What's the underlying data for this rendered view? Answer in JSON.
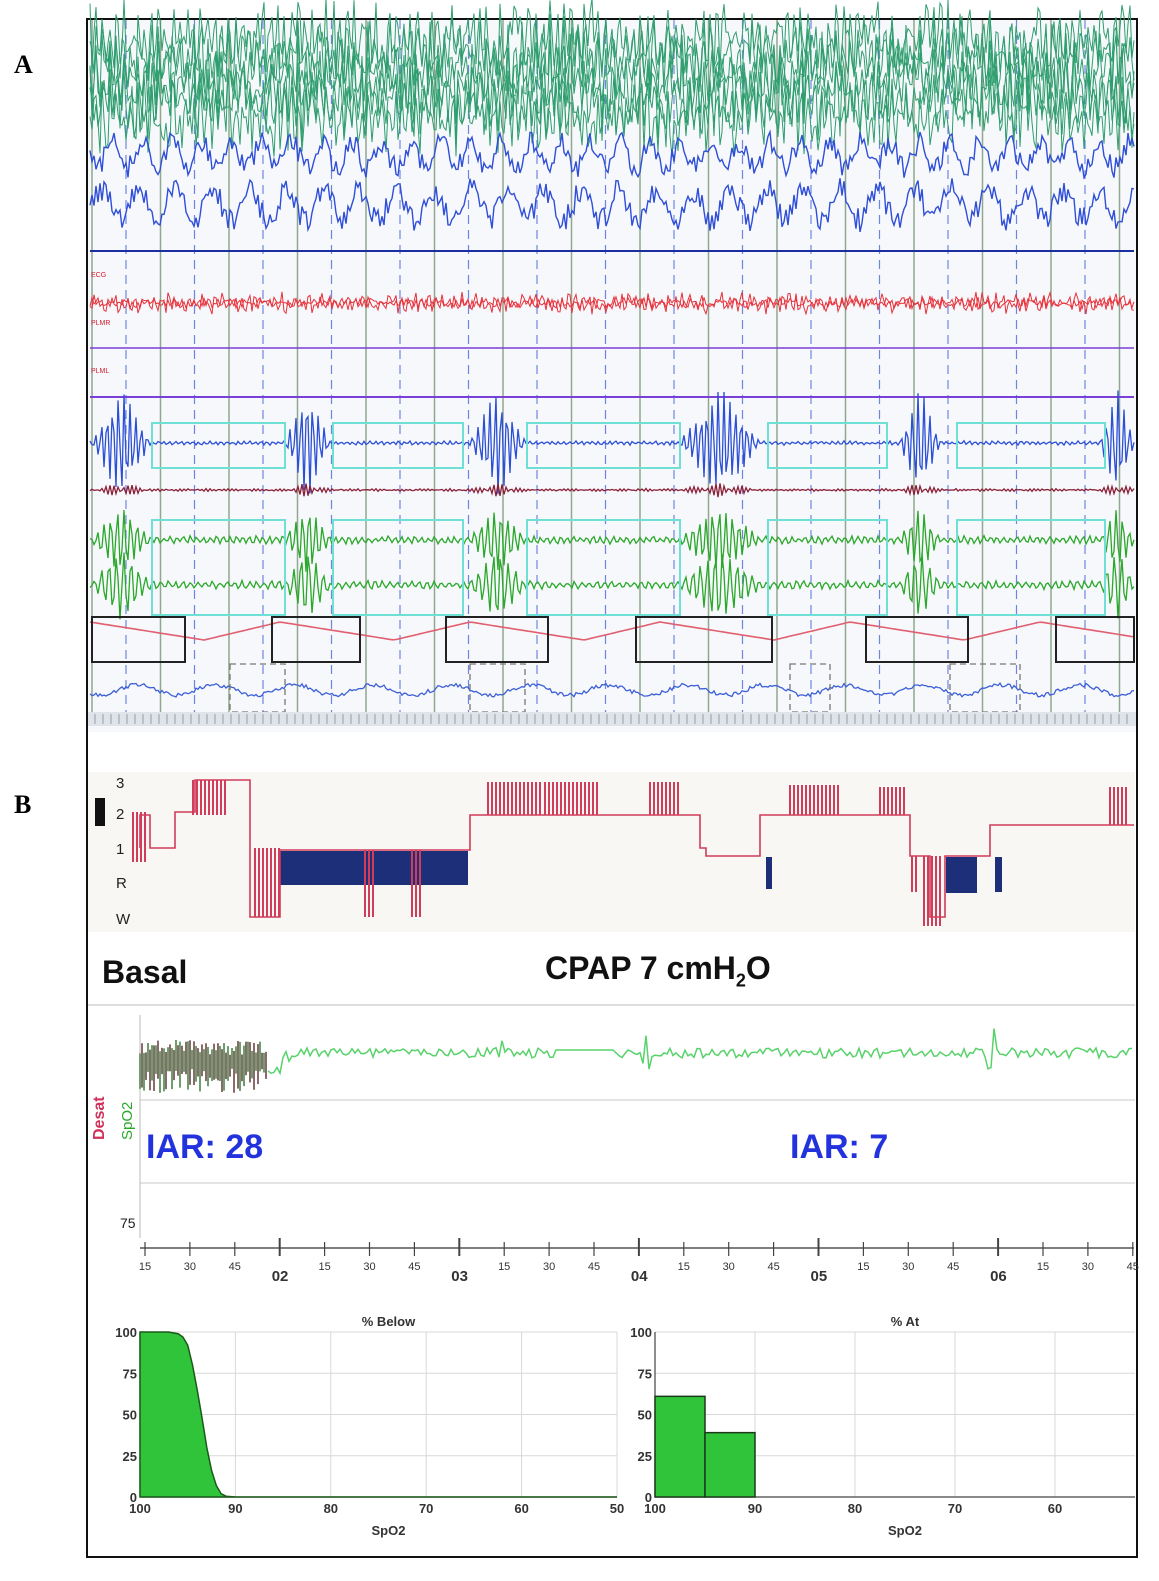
{
  "panels": {
    "a": "A",
    "b": "B"
  },
  "psg": {
    "channel_labels": [
      "ECG",
      "PLMR",
      "PLML"
    ],
    "colors": {
      "eeg": "#2e9e6e",
      "eog": "#2f4fd8",
      "ecg": "#e8313a",
      "leg": "#7a3fd6",
      "flow": "#2b4fd6",
      "effort": "#2aa82a",
      "spo2": "#e06070",
      "box_cyan": "#6ee0d6"
    }
  },
  "hypnogram": {
    "stage_labels": [
      "3",
      "2",
      "1",
      "R",
      "W"
    ],
    "colors": {
      "line": "#d03c5a",
      "rem": "#1e2f7a"
    }
  },
  "annotations": {
    "basal": "Basal",
    "cpap_pre": "CPAP  7 cmH",
    "cpap_sub": "2",
    "cpap_post": "O",
    "iar_left": "IAR: 28",
    "iar_right": "IAR: 7"
  },
  "trend": {
    "ylabel_desat": "Desat",
    "ylabel_spo2": "SpO2",
    "y_tick": "75",
    "time_ticks": [
      "15",
      "30",
      "45",
      "02",
      "15",
      "30",
      "45",
      "03",
      "15",
      "30",
      "45",
      "04",
      "15",
      "30",
      "45",
      "05",
      "15",
      "30",
      "45",
      "06",
      "15",
      "30",
      "45"
    ]
  },
  "chart_data": [
    {
      "type": "area",
      "title": "% Below",
      "xlabel": "SpO2",
      "ylabel": "",
      "x_ticks": [
        "100",
        "90",
        "80",
        "70",
        "60",
        "50"
      ],
      "y_ticks": [
        "100",
        "75",
        "50",
        "25",
        "0"
      ],
      "xlim": [
        100,
        50
      ],
      "ylim": [
        0,
        100
      ],
      "grid": true,
      "series": [
        {
          "x": [
            100,
            97,
            96,
            95.5,
            95,
            94.5,
            94,
            93.5,
            93,
            92.5,
            92,
            91.5,
            91,
            90,
            50
          ],
          "values": [
            100,
            100,
            99,
            97,
            92,
            80,
            65,
            48,
            30,
            16,
            7,
            2,
            0.5,
            0,
            0
          ]
        }
      ],
      "color": "#2fc43a"
    },
    {
      "type": "bar",
      "title": "% At",
      "xlabel": "SpO2",
      "ylabel": "",
      "x_ticks": [
        "100",
        "90",
        "80",
        "70",
        "60"
      ],
      "y_ticks": [
        "100",
        "75",
        "50",
        "25",
        "0"
      ],
      "xlim": [
        100,
        52
      ],
      "ylim": [
        0,
        100
      ],
      "grid": true,
      "bars": [
        {
          "from": 100,
          "to": 95,
          "value": 61
        },
        {
          "from": 95,
          "to": 90,
          "value": 39
        }
      ],
      "color": "#2fc43a"
    }
  ]
}
